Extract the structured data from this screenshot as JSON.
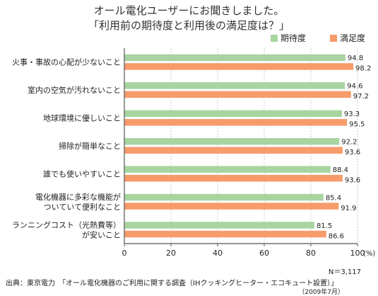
{
  "title_line1": "オール電化ユーザーにお聞きしました。",
  "title_line2": "「利用前の期待度と利用後の満足度は？」",
  "legend": {
    "expect": "期待度",
    "satisfy": "満足度"
  },
  "colors": {
    "expect": "#a8d4a0",
    "satisfy": "#f79b6b",
    "axis": "#555555",
    "grid": "#c8c8c8"
  },
  "chart_data": {
    "type": "bar",
    "orientation": "horizontal",
    "categories": [
      [
        "火事・事故の心配が少ないこと"
      ],
      [
        "室内の空気が汚れないこと"
      ],
      [
        "地球環境に優しいこと"
      ],
      [
        "掃除が簡単なこと"
      ],
      [
        "誰でも使いやすいこと"
      ],
      [
        "電化機器に多彩な機能が",
        "ついていて便利なこと"
      ],
      [
        "ランニングコスト（光熱費等）",
        "が安いこと"
      ]
    ],
    "series": [
      {
        "name": "期待度",
        "values": [
          94.8,
          94.6,
          93.3,
          92.2,
          88.4,
          85.4,
          81.5
        ]
      },
      {
        "name": "満足度",
        "values": [
          98.2,
          97.2,
          95.5,
          93.6,
          93.6,
          91.9,
          86.6
        ]
      }
    ],
    "xlim": [
      0,
      100
    ],
    "xticks": [
      0,
      20,
      40,
      60,
      80,
      100
    ],
    "unit": "(%)",
    "grid": true,
    "legend_position": "top-right"
  },
  "footer": {
    "n": "N＝3,117",
    "source": "出典：東京電力　「オール電化機器のご利用に関する調査（IHクッキングヒーター・エコキュート設置）」",
    "date": "（2009年7月）"
  }
}
